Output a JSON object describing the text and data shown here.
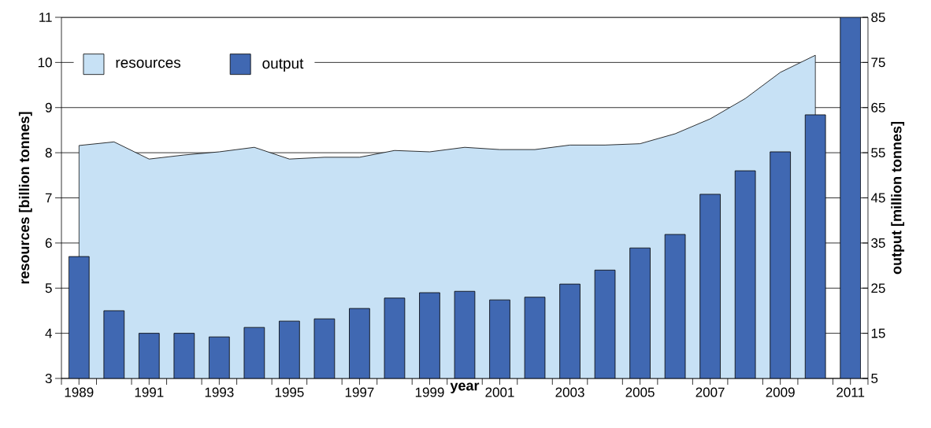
{
  "chart_data": {
    "type": "bar",
    "xlabel": "year",
    "ylabel": "resources [billion tonnes]",
    "y2label": "output [million tonnes]",
    "x": [
      1989,
      1990,
      1991,
      1992,
      1993,
      1994,
      1995,
      1996,
      1997,
      1998,
      1999,
      2000,
      2001,
      2002,
      2003,
      2004,
      2005,
      2006,
      2007,
      2008,
      2009,
      2010,
      2011
    ],
    "series": [
      {
        "name": "resources",
        "type": "area",
        "color": "#c7e1f5",
        "values": [
          8.16,
          8.24,
          7.86,
          7.95,
          8.02,
          8.12,
          7.86,
          7.9,
          7.9,
          8.05,
          8.02,
          8.12,
          8.07,
          8.07,
          8.17,
          8.17,
          8.2,
          8.42,
          8.75,
          9.2,
          9.78,
          10.16,
          null
        ]
      },
      {
        "name": "output",
        "axis": "y2",
        "color": "#4068b2",
        "values": [
          32,
          20,
          15,
          15,
          14.2,
          16.3,
          17.7,
          18.2,
          20.5,
          22.8,
          24,
          24.3,
          22.4,
          23,
          25.9,
          29,
          33.9,
          36.9,
          45.8,
          51,
          55.2,
          63.4,
          85
        ]
      }
    ],
    "xlim": [
      1988.5,
      2011.5
    ],
    "xticks": [
      {
        "value": 1988.5,
        "label": null
      },
      {
        "value": 1989.5,
        "label": null
      },
      {
        "value": 1990.5,
        "label": null
      },
      {
        "value": 1991.5,
        "label": null
      },
      {
        "value": 1992.5,
        "label": null
      },
      {
        "value": 1993.5,
        "label": null
      },
      {
        "value": 1994.5,
        "label": null
      },
      {
        "value": 1995.5,
        "label": null
      },
      {
        "value": 1996.5,
        "label": null
      },
      {
        "value": 1997.5,
        "label": null
      },
      {
        "value": 1998.5,
        "label": null
      },
      {
        "value": 1999.5,
        "label": null
      },
      {
        "value": 2000.5,
        "label": null
      },
      {
        "value": 2001.5,
        "label": null
      },
      {
        "value": 2002.5,
        "label": null
      },
      {
        "value": 2003.5,
        "label": null
      },
      {
        "value": 2004.5,
        "label": null
      },
      {
        "value": 2005.5,
        "label": null
      },
      {
        "value": 2006.5,
        "label": null
      },
      {
        "value": 2007.5,
        "label": null
      },
      {
        "value": 2008.5,
        "label": null
      },
      {
        "value": 2009.5,
        "label": null
      },
      {
        "value": 2010.5,
        "label": null
      },
      {
        "value": 2011.5,
        "label": null
      },
      1989,
      1991,
      1993,
      1995,
      1997,
      1999,
      2001,
      2003,
      2005,
      2007,
      2009,
      2011
    ],
    "ylim": [
      3,
      11
    ],
    "yticks": [
      3,
      4,
      5,
      6,
      7,
      8,
      9,
      10,
      11
    ],
    "y2lim": [
      5,
      85
    ],
    "y2ticks": [
      5,
      15,
      25,
      35,
      45,
      55,
      65,
      75,
      85
    ],
    "grid": "y",
    "legend": "top left"
  }
}
